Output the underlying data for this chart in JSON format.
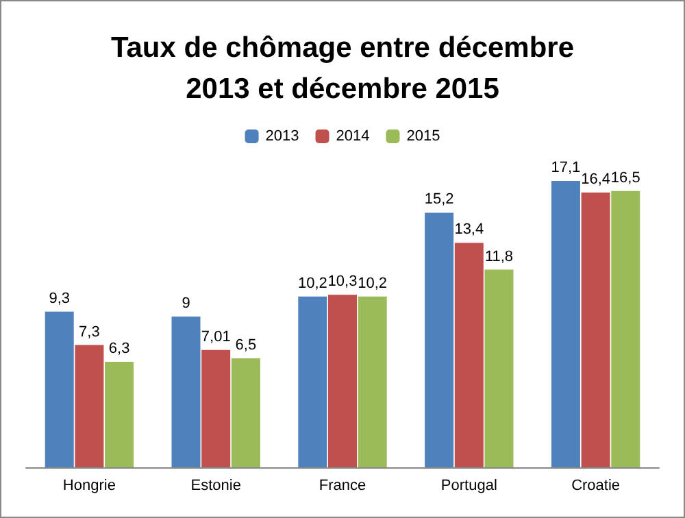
{
  "chart_data": {
    "type": "bar",
    "title": "Taux de chômage entre décembre\n2013 et décembre 2015",
    "categories": [
      "Hongrie",
      "Estonie",
      "France",
      "Portugal",
      "Croatie"
    ],
    "series": [
      {
        "name": "2013",
        "color": "#4f81bd",
        "values": [
          9.3,
          9,
          10.2,
          15.2,
          17.1
        ],
        "value_labels": [
          "9,3",
          "9",
          "10,2",
          "15,2",
          "17,1"
        ]
      },
      {
        "name": "2014",
        "color": "#c0504d",
        "values": [
          7.3,
          7.01,
          10.3,
          13.4,
          16.4
        ],
        "value_labels": [
          "7,3",
          "7,01",
          "10,3",
          "13,4",
          "16,4"
        ]
      },
      {
        "name": "2015",
        "color": "#9bbb59",
        "values": [
          6.3,
          6.5,
          10.2,
          11.8,
          16.5
        ],
        "value_labels": [
          "6,3",
          "6,5",
          "10,2",
          "11,8",
          "16,5"
        ]
      }
    ],
    "legend": "top"
  }
}
